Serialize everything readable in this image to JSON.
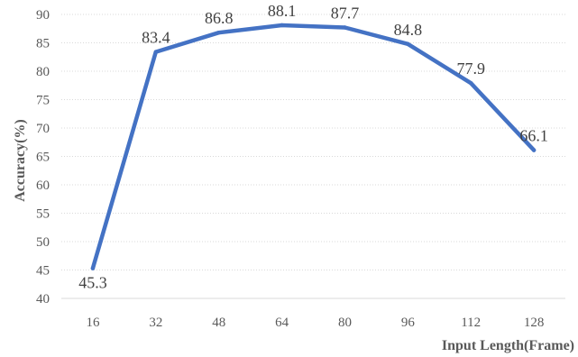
{
  "chart_data": {
    "type": "line",
    "x": [
      16,
      32,
      48,
      64,
      80,
      96,
      112,
      128
    ],
    "series": [
      {
        "values": [
          45.3,
          83.4,
          86.8,
          88.1,
          87.7,
          84.8,
          77.9,
          66.1
        ],
        "color": "#4472c4"
      }
    ],
    "data_labels": [
      "45.3",
      "83.4",
      "86.8",
      "88.1",
      "87.7",
      "84.8",
      "77.9",
      "66.1"
    ],
    "xlabel": "Input Length(Frame)",
    "ylabel": "Accuracy(%)",
    "ylim": [
      40,
      90
    ],
    "yticks": [
      40,
      45,
      50,
      55,
      60,
      65,
      70,
      75,
      80,
      85,
      90
    ],
    "grid": true,
    "legend": "none"
  }
}
